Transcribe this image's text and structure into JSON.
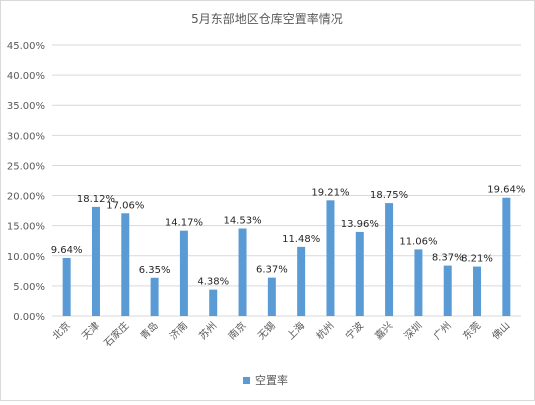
{
  "chart_data": {
    "type": "bar",
    "title": "5月东部地区仓库空置率情况",
    "xlabel": "",
    "ylabel": "",
    "ylim": [
      0,
      45
    ],
    "yticks": [
      "0.00%",
      "5.00%",
      "10.00%",
      "15.00%",
      "20.00%",
      "25.00%",
      "30.00%",
      "35.00%",
      "40.00%",
      "45.00%"
    ],
    "categories": [
      "北京",
      "天津",
      "石家庄",
      "青岛",
      "济南",
      "苏州",
      "南京",
      "无锡",
      "上海",
      "杭州",
      "宁波",
      "嘉兴",
      "深圳",
      "广州",
      "东莞",
      "佛山"
    ],
    "series": [
      {
        "name": "空置率",
        "values": [
          9.64,
          18.12,
          17.06,
          6.35,
          14.17,
          4.38,
          14.53,
          6.37,
          11.48,
          19.21,
          13.96,
          18.75,
          11.06,
          8.37,
          8.21,
          19.64
        ],
        "data_labels": [
          "9.64%",
          "18.12%",
          "17.06%",
          "6.35%",
          "14.17%",
          "4.38%",
          "14.53%",
          "6.37%",
          "11.48%",
          "19.21%",
          "13.96%",
          "18.75%",
          "11.06%",
          "8.37%",
          "8.21%",
          "19.64%"
        ]
      }
    ],
    "grid": true,
    "legend": "bottom",
    "colors": {
      "bar": "#5b9bd5",
      "grid": "#d9d9d9",
      "text": "#595959",
      "label": "#262626"
    }
  }
}
